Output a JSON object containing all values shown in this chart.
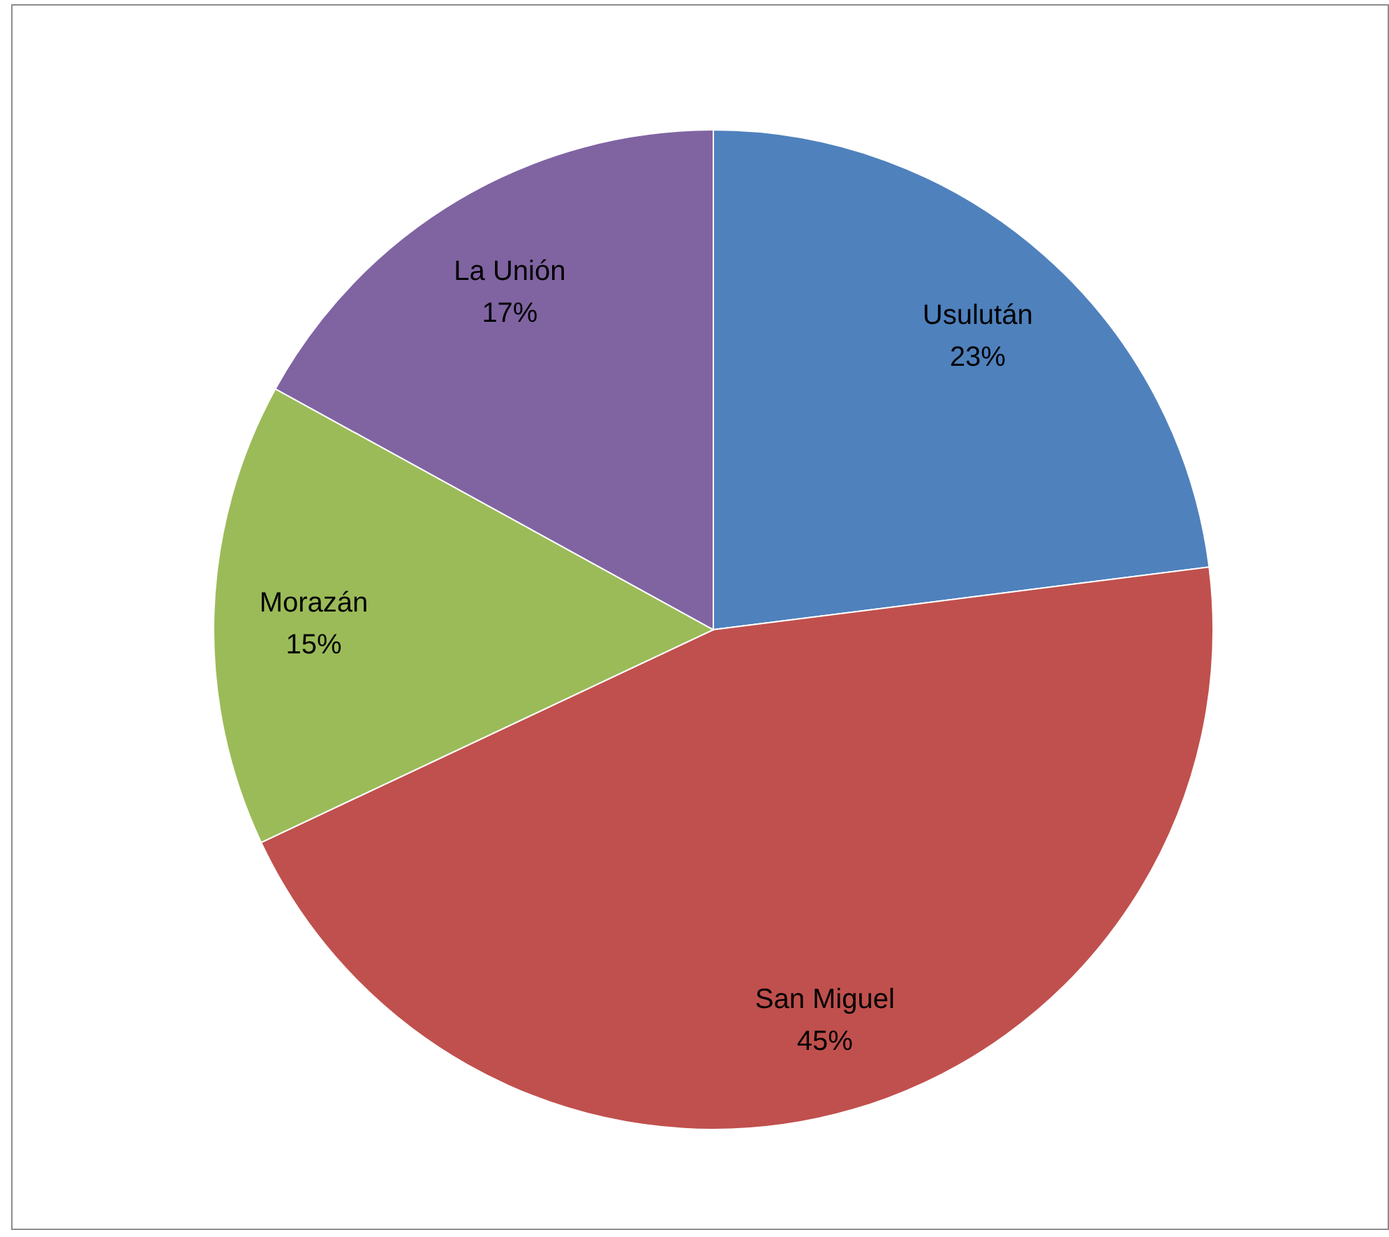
{
  "chart_data": {
    "type": "pie",
    "categories": [
      "Usulután",
      "San Miguel",
      "Morazán",
      "La Unión"
    ],
    "values": [
      23,
      45,
      15,
      17
    ],
    "value_labels": [
      "23%",
      "45%",
      "15%",
      "17%"
    ],
    "colors": [
      "#4f81bd",
      "#c0504d",
      "#9bbb59",
      "#8064a2"
    ]
  }
}
